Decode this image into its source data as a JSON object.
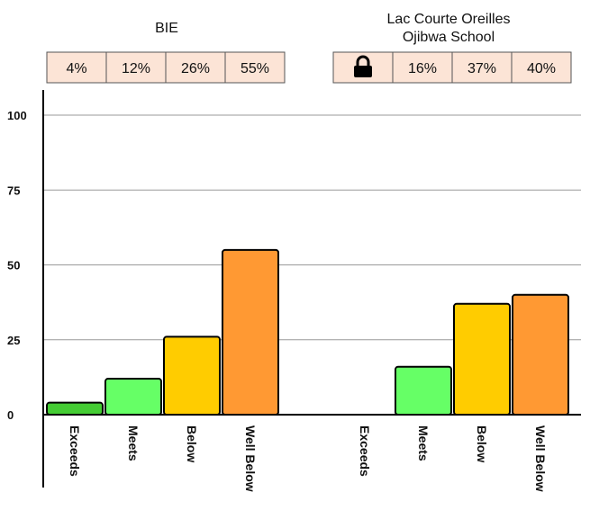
{
  "chart_data": {
    "type": "bar",
    "ylim": [
      0,
      100
    ],
    "yticks": [
      0,
      25,
      50,
      75,
      100
    ],
    "grid": true,
    "groups": [
      {
        "title_lines": [
          "BIE"
        ],
        "summary_cells": [
          "4%",
          "12%",
          "26%",
          "55%"
        ],
        "categories": [
          "Exceeds",
          "Meets",
          "Below",
          "Well Below"
        ],
        "values": [
          4,
          12,
          26,
          55
        ]
      },
      {
        "title_lines": [
          "Lac Courte Oreilles",
          "Ojibwa School"
        ],
        "summary_cells": [
          "lock-icon",
          "16%",
          "37%",
          "40%"
        ],
        "categories": [
          "Exceeds",
          "Meets",
          "Below",
          "Well Below"
        ],
        "values": [
          null,
          16,
          37,
          40
        ]
      }
    ],
    "colors": {
      "Exceeds": "#44cc33",
      "Meets": "#66ff66",
      "Below": "#ffcc00",
      "Well Below": "#ff9933",
      "summary_fill": "#fce4d6",
      "gridline": "#999999"
    }
  }
}
